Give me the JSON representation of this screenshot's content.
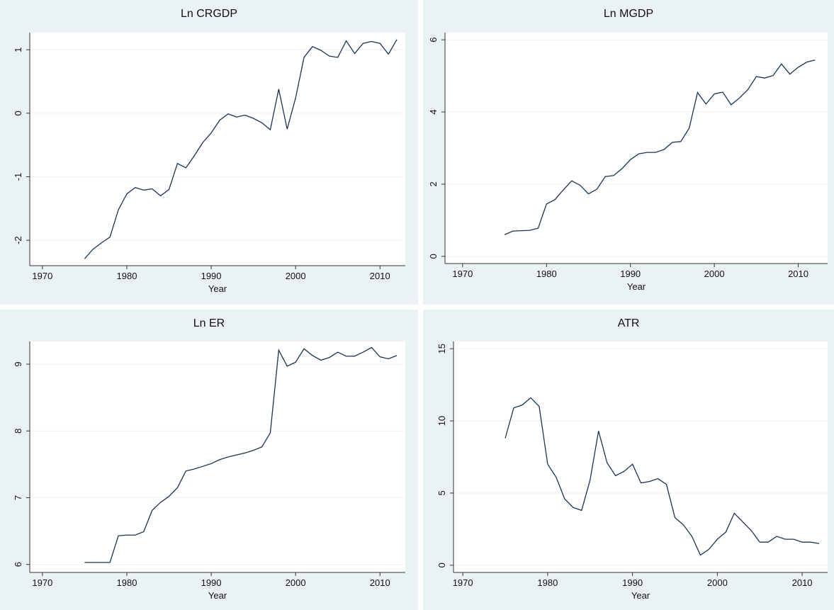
{
  "chart_data": [
    {
      "type": "line",
      "title": "Ln CRGDP",
      "xlabel": "Year",
      "color": "#1a3354",
      "grid": true,
      "xlim": [
        1968.5,
        2013
      ],
      "xticks": [
        1970,
        1980,
        1990,
        2000,
        2010
      ],
      "ylim": [
        -2.4,
        1.27
      ],
      "yticks": [
        -2,
        -1,
        0,
        1
      ],
      "x": [
        1975,
        1976,
        1977,
        1978,
        1979,
        1980,
        1981,
        1982,
        1983,
        1984,
        1985,
        1986,
        1987,
        1988,
        1989,
        1990,
        1991,
        1992,
        1993,
        1994,
        1995,
        1996,
        1997,
        1998,
        1999,
        2000,
        2001,
        2002,
        2003,
        2004,
        2005,
        2006,
        2007,
        2008,
        2009,
        2010,
        2011,
        2012
      ],
      "values": [
        -2.29,
        -2.14,
        -2.04,
        -1.95,
        -1.52,
        -1.27,
        -1.17,
        -1.21,
        -1.19,
        -1.3,
        -1.2,
        -0.79,
        -0.86,
        -0.67,
        -0.46,
        -0.31,
        -0.11,
        -0.01,
        -0.06,
        -0.03,
        -0.08,
        -0.15,
        -0.26,
        0.38,
        -0.25,
        0.24,
        0.88,
        1.05,
        0.99,
        0.9,
        0.88,
        1.14,
        0.94,
        1.1,
        1.13,
        1.1,
        0.93,
        1.16
      ]
    },
    {
      "type": "line",
      "title": "Ln MGDP",
      "xlabel": "Year",
      "color": "#1a3354",
      "grid": true,
      "xlim": [
        1967.9,
        2013.5
      ],
      "xticks": [
        1970,
        1980,
        1990,
        2000,
        2010
      ],
      "ylim": [
        -0.2,
        6.2
      ],
      "yticks": [
        0,
        2,
        4,
        6
      ],
      "x": [
        1975,
        1976,
        1977,
        1978,
        1979,
        1980,
        1981,
        1982,
        1983,
        1984,
        1985,
        1986,
        1987,
        1988,
        1989,
        1990,
        1991,
        1992,
        1993,
        1994,
        1995,
        1996,
        1997,
        1998,
        1999,
        2000,
        2001,
        2002,
        2003,
        2004,
        2005,
        2006,
        2007,
        2008,
        2009,
        2010,
        2011,
        2012
      ],
      "values": [
        0.6,
        0.7,
        0.71,
        0.72,
        0.78,
        1.45,
        1.57,
        1.84,
        2.09,
        1.97,
        1.73,
        1.86,
        2.21,
        2.24,
        2.43,
        2.68,
        2.84,
        2.88,
        2.88,
        2.96,
        3.16,
        3.18,
        3.55,
        4.54,
        4.22,
        4.5,
        4.55,
        4.2,
        4.39,
        4.62,
        4.98,
        4.94,
        5.01,
        5.33,
        5.05,
        5.24,
        5.38,
        5.44
      ]
    },
    {
      "type": "line",
      "title": "Ln ER",
      "xlabel": "Year",
      "color": "#1a3354",
      "grid": true,
      "xlim": [
        1968.5,
        2013
      ],
      "xticks": [
        1970,
        1980,
        1990,
        2000,
        2010
      ],
      "ylim": [
        5.88,
        9.34
      ],
      "yticks": [
        6,
        7,
        8,
        9
      ],
      "x": [
        1975,
        1976,
        1977,
        1978,
        1979,
        1980,
        1981,
        1982,
        1983,
        1984,
        1985,
        1986,
        1987,
        1988,
        1989,
        1990,
        1991,
        1992,
        1993,
        1994,
        1995,
        1996,
        1997,
        1998,
        1999,
        2000,
        2001,
        2002,
        2003,
        2004,
        2005,
        2006,
        2007,
        2008,
        2009,
        2010,
        2011,
        2012
      ],
      "values": [
        6.03,
        6.03,
        6.03,
        6.03,
        6.43,
        6.44,
        6.44,
        6.49,
        6.81,
        6.93,
        7.02,
        7.15,
        7.4,
        7.43,
        7.47,
        7.51,
        7.57,
        7.61,
        7.64,
        7.67,
        7.71,
        7.76,
        7.97,
        9.21,
        8.97,
        9.03,
        9.23,
        9.13,
        9.06,
        9.1,
        9.18,
        9.12,
        9.12,
        9.18,
        9.25,
        9.11,
        9.08,
        9.13
      ]
    },
    {
      "type": "line",
      "title": "ATR",
      "xlabel": "Year",
      "color": "#1a3354",
      "grid": true,
      "xlim": [
        1968.9,
        2013
      ],
      "xticks": [
        1970,
        1980,
        1990,
        2000,
        2010
      ],
      "ylim": [
        -0.5,
        15.5
      ],
      "yticks": [
        0,
        5,
        10,
        15
      ],
      "x": [
        1975,
        1976,
        1977,
        1978,
        1979,
        1980,
        1981,
        1982,
        1983,
        1984,
        1985,
        1986,
        1987,
        1988,
        1989,
        1990,
        1991,
        1992,
        1993,
        1994,
        1995,
        1996,
        1997,
        1998,
        1999,
        2000,
        2001,
        2002,
        2003,
        2004,
        2005,
        2006,
        2007,
        2008,
        2009,
        2010,
        2011,
        2012
      ],
      "values": [
        8.8,
        10.9,
        11.1,
        11.6,
        11.0,
        7.0,
        6.1,
        4.6,
        4.0,
        3.8,
        5.9,
        9.3,
        7.1,
        6.2,
        6.5,
        7.0,
        5.7,
        5.8,
        6.0,
        5.6,
        3.3,
        2.8,
        2.0,
        0.7,
        1.1,
        1.8,
        2.3,
        3.6,
        3.0,
        2.4,
        1.6,
        1.6,
        2.0,
        1.8,
        1.8,
        1.6,
        1.6,
        1.5
      ]
    }
  ]
}
